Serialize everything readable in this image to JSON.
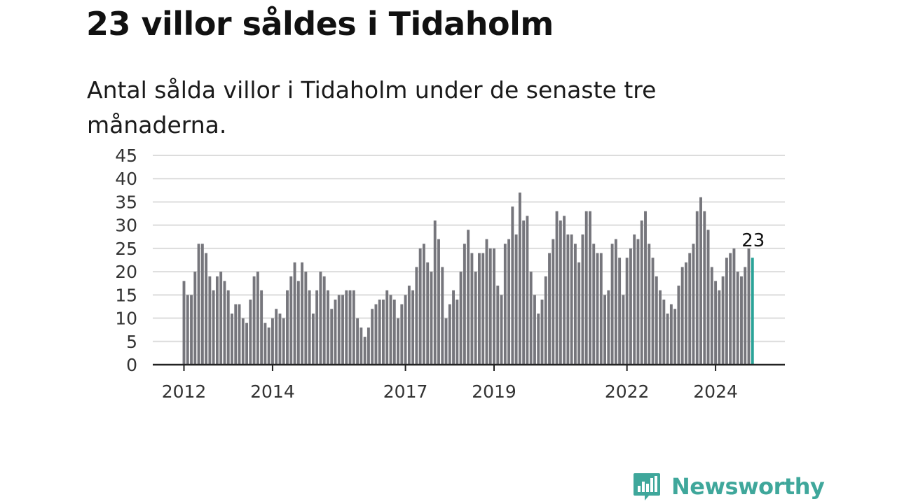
{
  "title": "23 villor såldes i Tidaholm",
  "subtitle": "Antal sålda villor i Tidaholm under de senaste tre månaderna.",
  "brand": {
    "name": "Newsworthy",
    "icon": "newsworthy-logo-icon",
    "color": "#3fa79b"
  },
  "colors": {
    "bar": "#76767c",
    "highlight": "#2aa398",
    "grid": "#dcdcdc",
    "axis": "#222222"
  },
  "chart_data": {
    "type": "bar",
    "ylim": [
      0,
      45
    ],
    "yticks": [
      0,
      5,
      10,
      15,
      20,
      25,
      30,
      35,
      40,
      45
    ],
    "grid": true,
    "xlabel": "",
    "ylabel": "",
    "x_tick_labels": [
      {
        "label": "2012",
        "index": 0
      },
      {
        "label": "2014",
        "index": 24
      },
      {
        "label": "2017",
        "index": 60
      },
      {
        "label": "2019",
        "index": 84
      },
      {
        "label": "2022",
        "index": 120
      },
      {
        "label": "2024",
        "index": 144
      }
    ],
    "values": [
      18,
      15,
      15,
      20,
      26,
      26,
      24,
      19,
      16,
      19,
      20,
      18,
      16,
      11,
      13,
      13,
      10,
      9,
      14,
      19,
      20,
      16,
      9,
      8,
      10,
      12,
      11,
      10,
      16,
      19,
      22,
      18,
      22,
      20,
      16,
      11,
      16,
      20,
      19,
      16,
      12,
      14,
      15,
      15,
      16,
      16,
      16,
      10,
      8,
      6,
      8,
      12,
      13,
      14,
      14,
      16,
      15,
      14,
      10,
      13,
      15,
      17,
      16,
      21,
      25,
      26,
      22,
      20,
      31,
      27,
      21,
      10,
      13,
      16,
      14,
      20,
      26,
      29,
      24,
      20,
      24,
      24,
      27,
      25,
      25,
      17,
      15,
      26,
      27,
      34,
      28,
      37,
      31,
      32,
      20,
      15,
      11,
      14,
      19,
      24,
      27,
      33,
      31,
      32,
      28,
      28,
      26,
      22,
      28,
      33,
      33,
      26,
      24,
      24,
      15,
      16,
      26,
      27,
      23,
      15,
      23,
      25,
      28,
      27,
      31,
      33,
      26,
      23,
      19,
      16,
      14,
      11,
      13,
      12,
      17,
      21,
      22,
      24,
      26,
      33,
      36,
      33,
      29,
      21,
      18,
      16,
      19,
      23,
      24,
      25,
      20,
      19,
      21,
      25,
      23
    ],
    "highlight_index": 154,
    "annotation": "23"
  }
}
